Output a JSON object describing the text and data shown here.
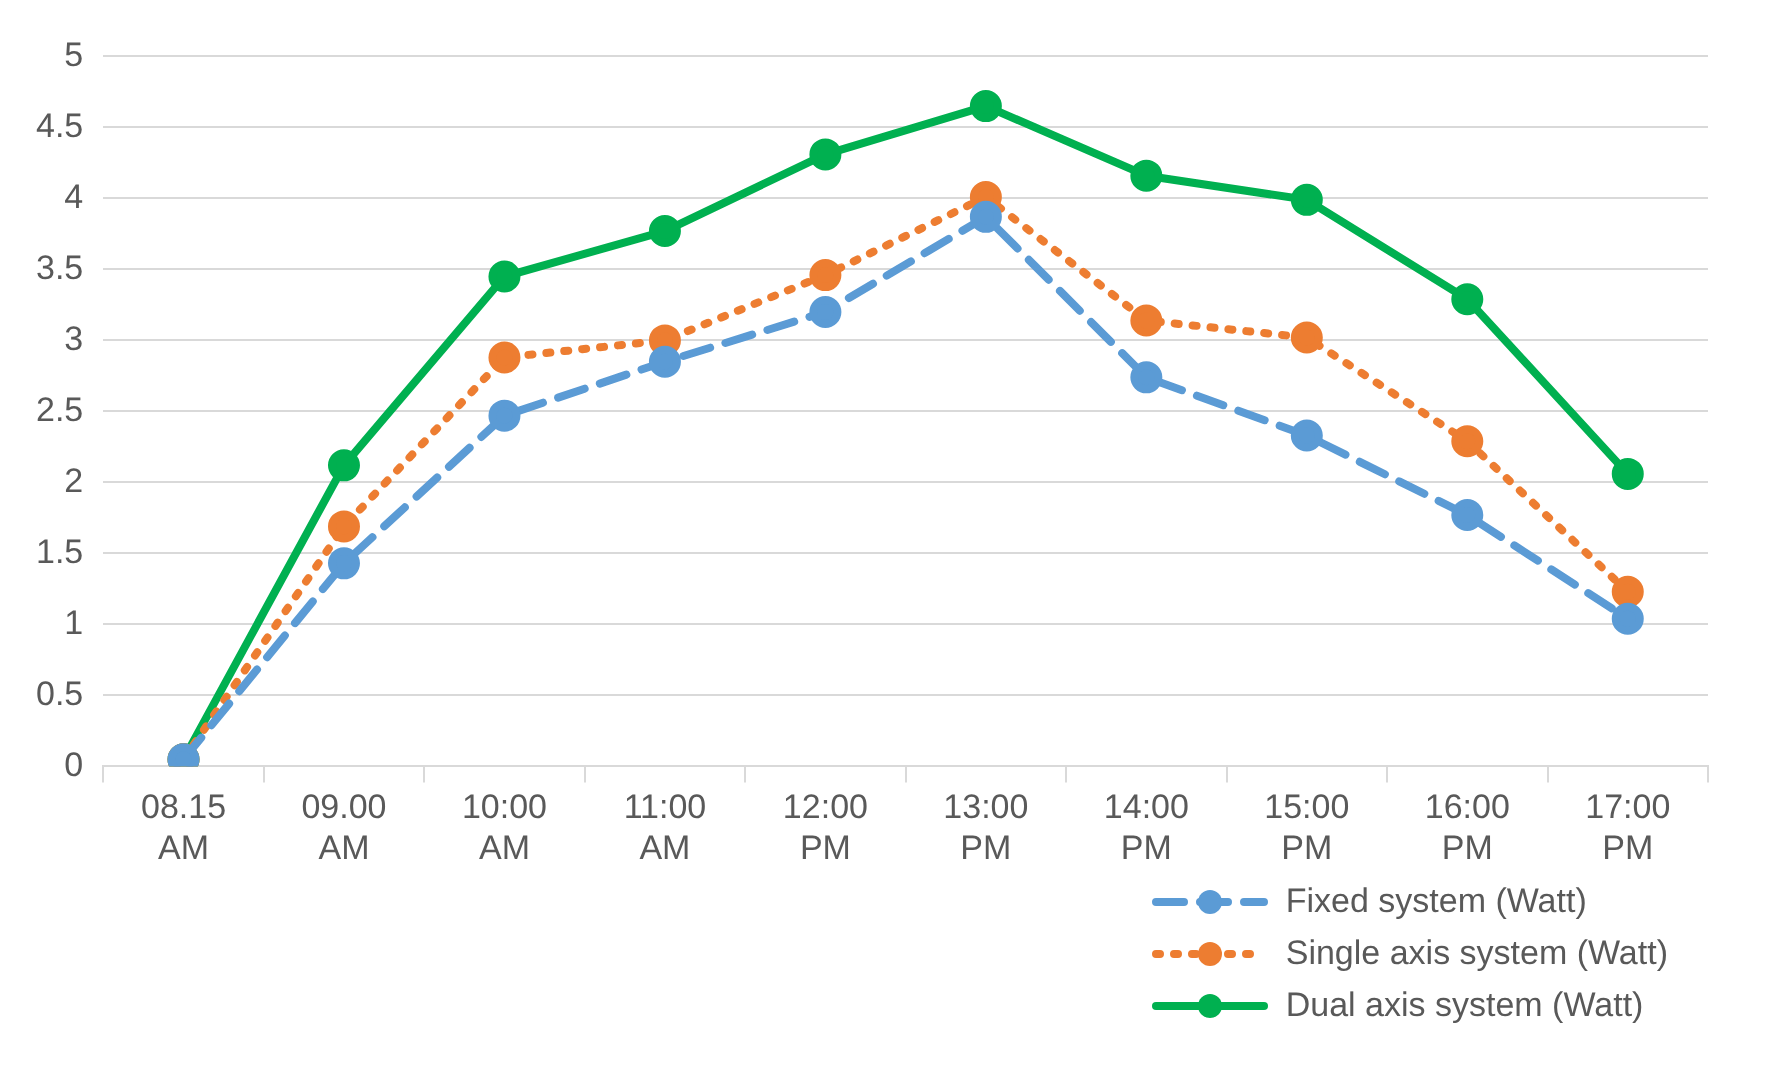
{
  "chart_data": {
    "type": "line",
    "categories": [
      "08.15 AM",
      "09.00 AM",
      "10:00 AM",
      "11:00 AM",
      "12:00 PM",
      "13:00 PM",
      "14:00 PM",
      "15:00 PM",
      "16:00 PM",
      "17:00 PM"
    ],
    "series": [
      {
        "name": "Fixed system (Watt)",
        "color": "#5b9bd5",
        "line_style": "dashed",
        "values": [
          0.05,
          1.43,
          2.47,
          2.85,
          3.2,
          3.87,
          2.74,
          2.33,
          1.77,
          1.04
        ]
      },
      {
        "name": "Single axis system (Watt)",
        "color": "#ed7d31",
        "line_style": "dotted",
        "values": [
          0.05,
          1.69,
          2.88,
          3.0,
          3.46,
          4.01,
          3.14,
          3.02,
          2.29,
          1.23
        ]
      },
      {
        "name": "Dual axis system (Watt)",
        "color": "#00b050",
        "line_style": "solid",
        "values": [
          0.05,
          2.12,
          3.45,
          3.77,
          4.31,
          4.65,
          4.16,
          3.99,
          3.29,
          2.06
        ]
      }
    ],
    "ylim": [
      0,
      5
    ],
    "yticks": [
      0,
      0.5,
      1,
      1.5,
      2,
      2.5,
      3,
      3.5,
      4,
      4.5,
      5
    ],
    "grid": "y",
    "legend": "bottom right",
    "marker": "circle"
  }
}
